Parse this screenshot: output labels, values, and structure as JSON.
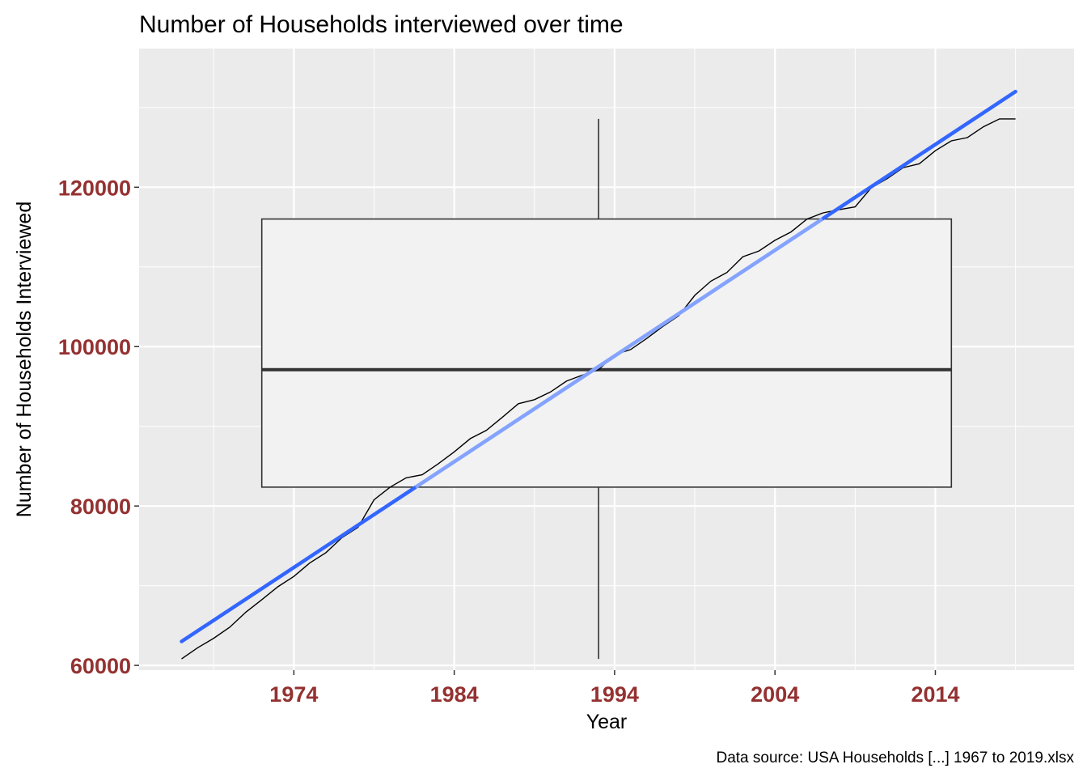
{
  "chart_data": {
    "type": "line",
    "title": "Number of Households interviewed over time",
    "xlabel": "Year",
    "ylabel": "Number of Households Interviewed",
    "caption": "Data source: USA Households [...] 1967 to 2019.xlsx",
    "xlim": [
      1964.35,
      2022.65
    ],
    "ylim": [
      59400,
      137400
    ],
    "x_breaks": [
      1974,
      1984,
      1994,
      2004,
      2014
    ],
    "x_minor_breaks": [
      1969,
      1979,
      1989,
      1999,
      2009,
      2019
    ],
    "y_breaks": [
      60000,
      80000,
      100000,
      120000
    ],
    "y_minor_breaks": [
      70000,
      90000,
      110000,
      130000
    ],
    "grid": true,
    "colors": {
      "panel_background": "#ebebeb",
      "grid_line": "#ffffff",
      "line": "#000000",
      "trend": "#3366ff",
      "box_fill": "#f2f2f2",
      "box_line": "#333333",
      "tick_label": "#943131"
    },
    "series": [
      {
        "x": [
          1967,
          1968,
          1969,
          1970,
          1971,
          1972,
          1973,
          1974,
          1975,
          1976,
          1977,
          1978,
          1979,
          1980,
          1981,
          1982,
          1983,
          1984,
          1985,
          1986,
          1987,
          1988,
          1989,
          1990,
          1991,
          1992,
          1993,
          1994,
          1995,
          1996,
          1997,
          1998,
          1999,
          2000,
          2001,
          2002,
          2003,
          2004,
          2005,
          2006,
          2007,
          2008,
          2009,
          2010,
          2011,
          2012,
          2013,
          2014,
          2015,
          2016,
          2017,
          2018,
          2019
        ],
        "y": [
          60813,
          62214,
          63401,
          64778,
          66676,
          68251,
          69859,
          71163,
          72867,
          74142,
          76030,
          77330,
          80776,
          82368,
          83527,
          83918,
          85290,
          86789,
          88458,
          89479,
          91124,
          92830,
          93347,
          94312,
          95669,
          96426,
          97107,
          98990,
          99627,
          101018,
          102528,
          103874,
          106434,
          108209,
          109297,
          111278,
          112000,
          113343,
          114384,
          116011,
          116783,
          117181,
          117538,
          119927,
          121084,
          122459,
          122952,
          124587,
          125819,
          126224,
          127586,
          128579,
          128579
        ]
      }
    ],
    "trend_line": {
      "x": [
        1967,
        2019
      ],
      "y": [
        63000,
        132000
      ]
    },
    "boxplot": {
      "x_range": [
        1972,
        2015
      ],
      "lower": 82368,
      "middle": 97107,
      "upper": 116011,
      "whisker_low": 60813,
      "whisker_high": 128579,
      "whisker_x": 1993
    }
  }
}
